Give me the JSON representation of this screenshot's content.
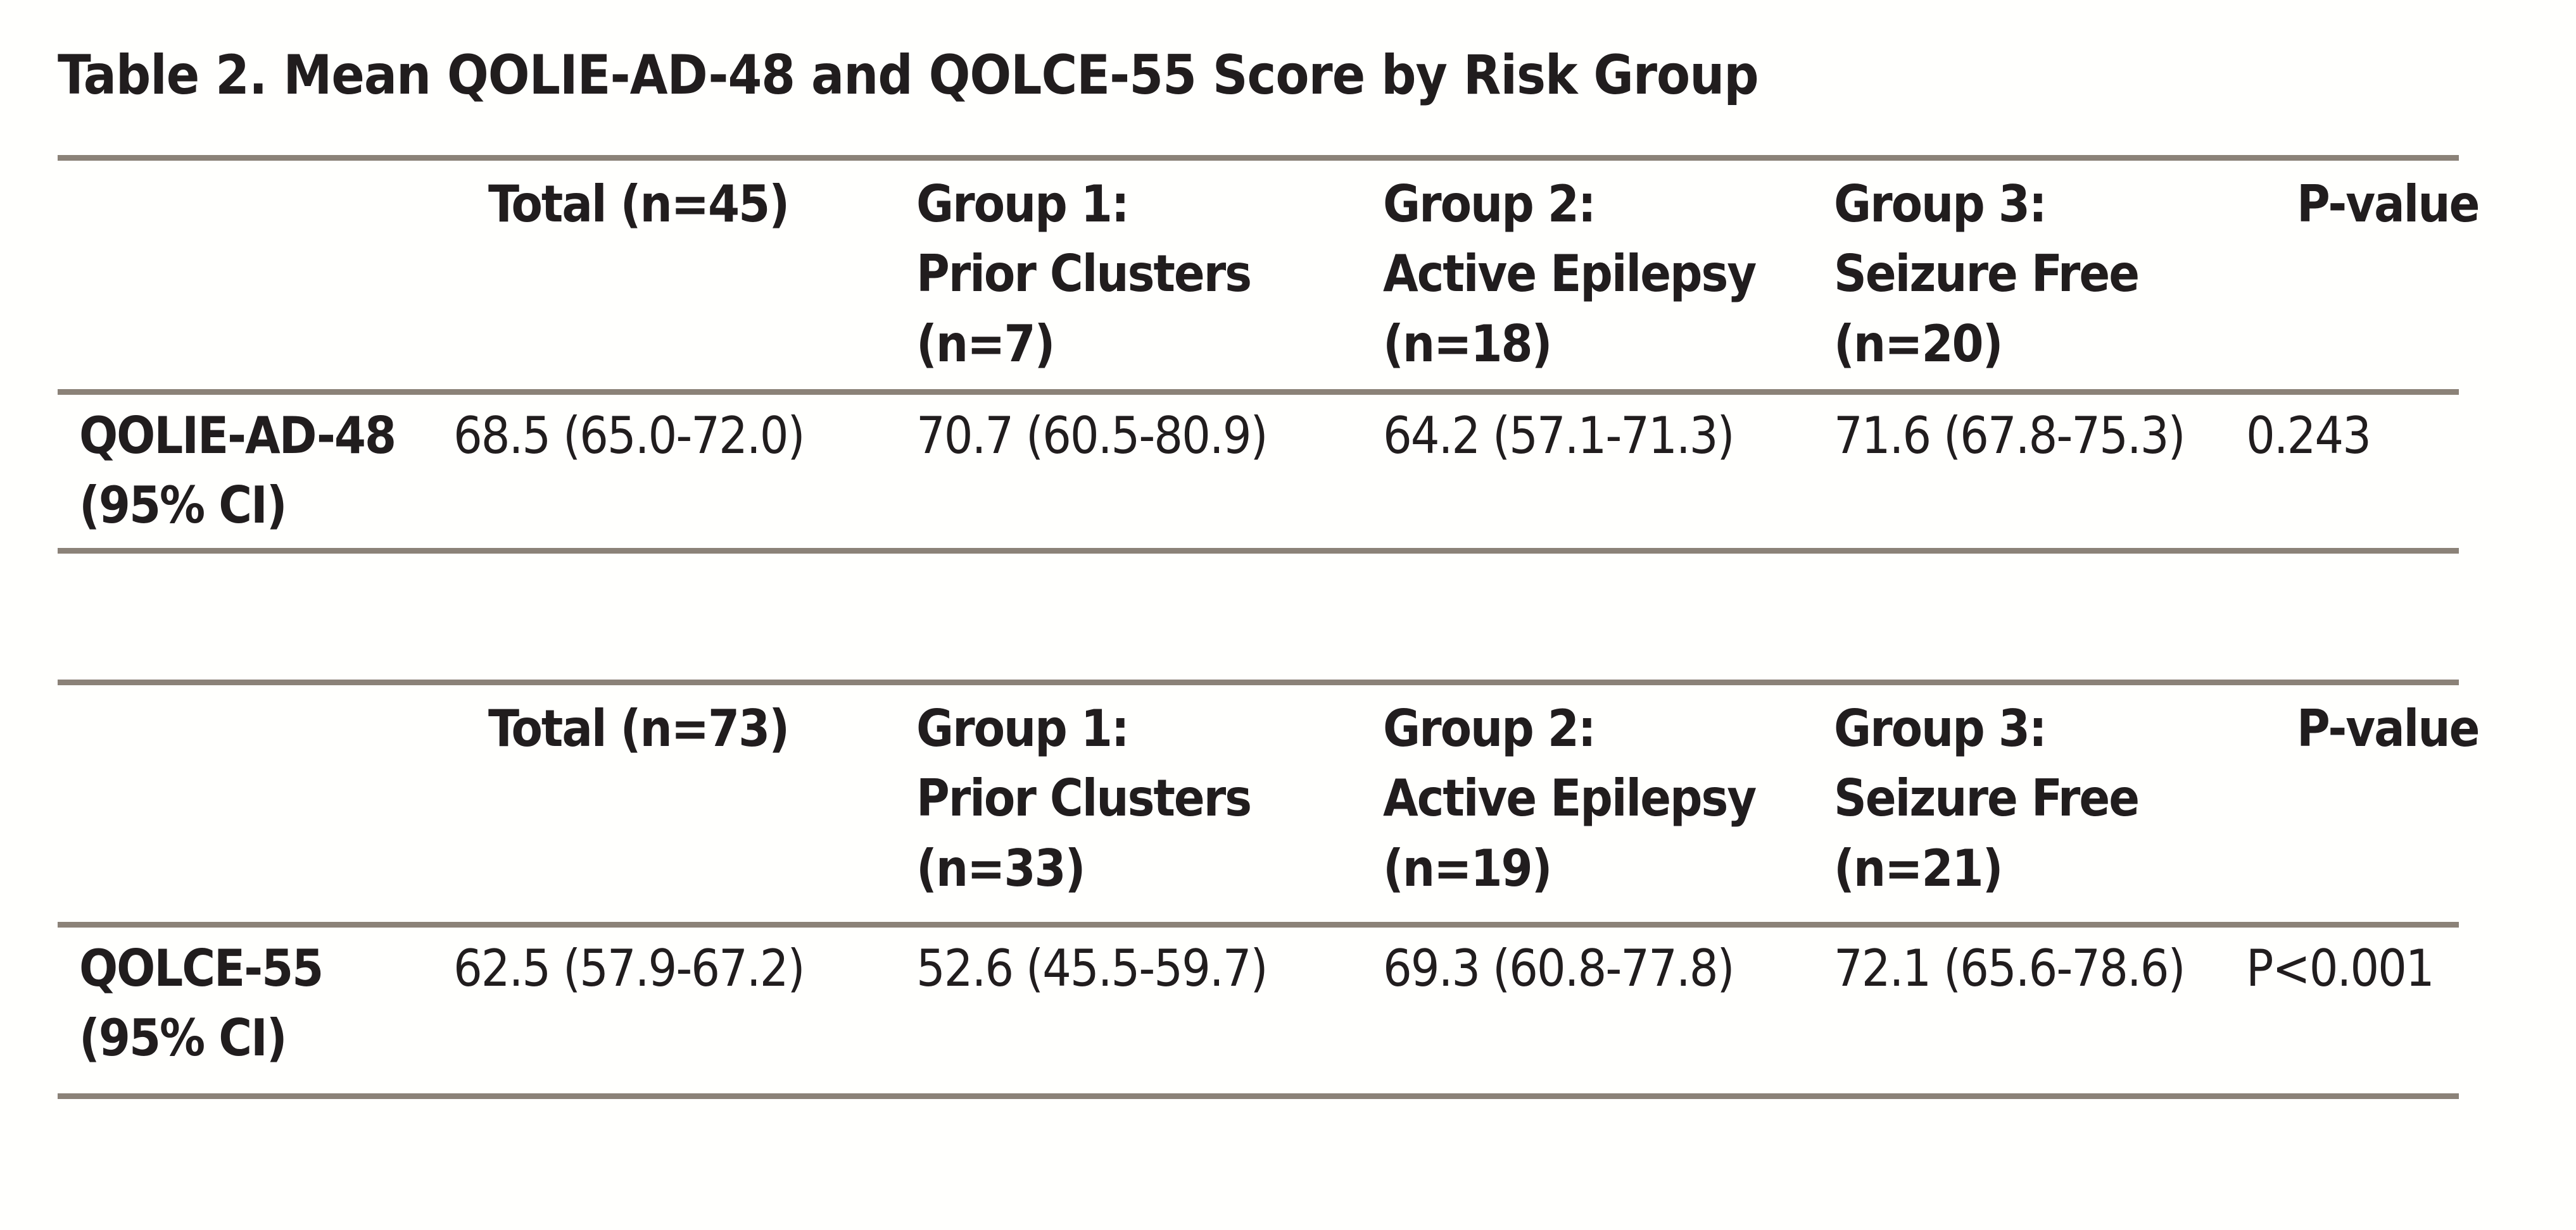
{
  "page": {
    "title": "Table 2. Mean QOLIE-AD-48 and QOLCE-55 Score by Risk Group",
    "text_color": "#211d1e",
    "rule_color": "#8b8278",
    "background_color": "#fffffd"
  },
  "tables": [
    {
      "name": "QOLIE-AD-48 by risk group",
      "headers": [
        "",
        "Total (n=45)",
        "Group 1:\nPrior Clusters\n(n=7)",
        "Group 2:\nActive Epilepsy\n(n=18)",
        "Group 3:\nSeizure Free\n(n=20)",
        "P-value"
      ],
      "rows": [
        [
          "QOLIE-AD-48\n(95% CI)",
          "68.5 (65.0-72.0)",
          "70.7 (60.5-80.9)",
          "64.2 (57.1-71.3)",
          "71.6 (67.8-75.3)",
          "0.243"
        ]
      ]
    },
    {
      "name": "QOLCE-55 by risk group",
      "headers": [
        "",
        "Total (n=73)",
        "Group 1:\nPrior Clusters\n(n=33)",
        "Group 2:\nActive Epilepsy\n(n=19)",
        "Group 3:\nSeizure Free\n(n=21)",
        "P-value"
      ],
      "rows": [
        [
          "QOLCE-55\n(95% CI)",
          "62.5 (57.9-67.2)",
          "52.6 (45.5-59.7)",
          "69.3 (60.8-77.8)",
          "72.1 (65.6-78.6)",
          "P<0.001"
        ]
      ]
    }
  ]
}
